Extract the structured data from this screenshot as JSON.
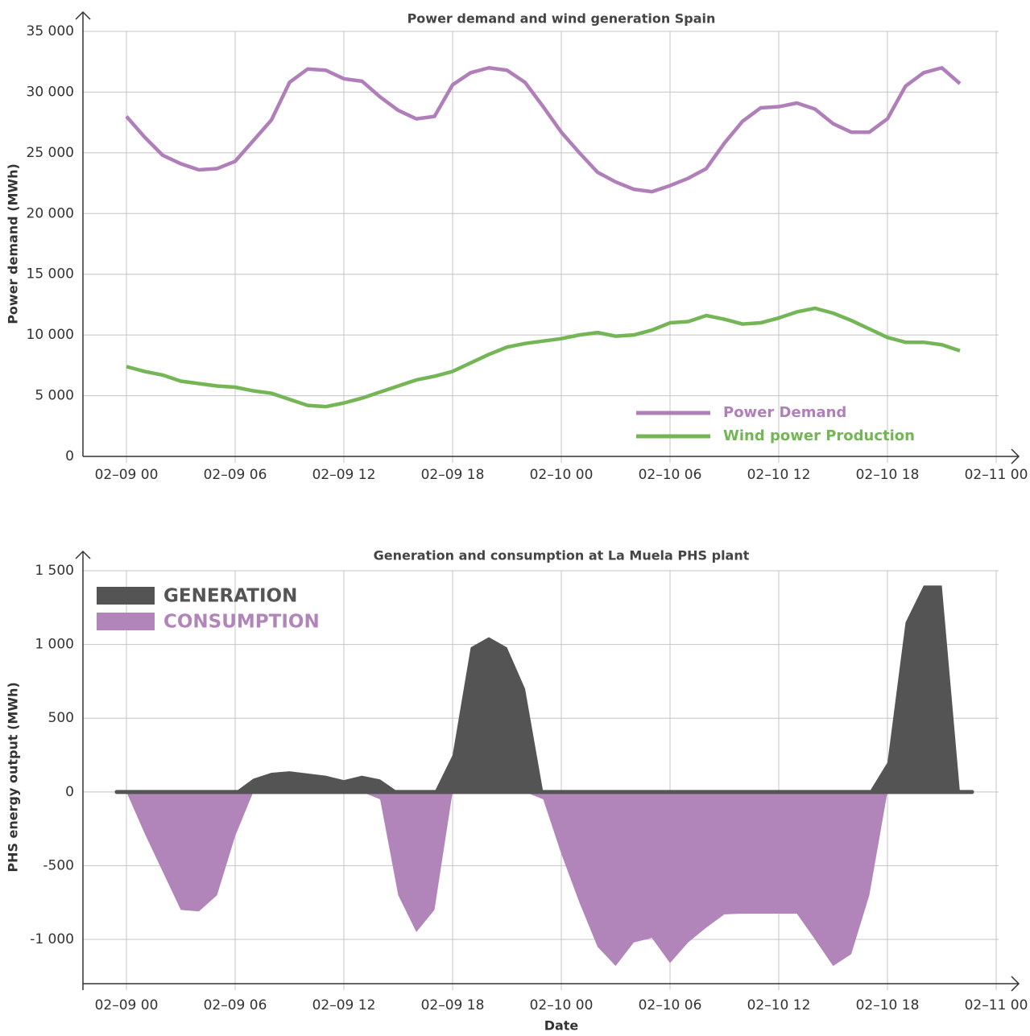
{
  "chart_data": [
    {
      "type": "line",
      "title": "Power demand and wind generation Spain",
      "ylabel": "Power demand (MWh)",
      "x": [
        "02–09 00",
        "02–09 01",
        "02–09 02",
        "02–09 03",
        "02–09 04",
        "02–09 05",
        "02–09 06",
        "02–09 07",
        "02–09 08",
        "02–09 09",
        "02–09 10",
        "02–09 11",
        "02–09 12",
        "02–09 13",
        "02–09 14",
        "02–09 15",
        "02–09 16",
        "02–09 17",
        "02–09 18",
        "02–09 19",
        "02–09 20",
        "02–09 21",
        "02–09 22",
        "02–09 23",
        "02–10 00",
        "02–10 01",
        "02–10 02",
        "02–10 03",
        "02–10 04",
        "02–10 05",
        "02–10 06",
        "02–10 07",
        "02–10 08",
        "02–10 09",
        "02–10 10",
        "02–10 11",
        "02–10 12",
        "02–10 13",
        "02–10 14",
        "02–10 15",
        "02–10 16",
        "02–10 17",
        "02–10 18",
        "02–10 19",
        "02–10 20",
        "02–10 21",
        "02–10 22"
      ],
      "series": [
        {
          "name": "Power Demand",
          "color": "#b07fba",
          "values": [
            28000,
            26300,
            24800,
            24100,
            23600,
            23700,
            24300,
            26000,
            27700,
            30800,
            31900,
            31800,
            31100,
            30900,
            29600,
            28500,
            27800,
            28000,
            30600,
            31600,
            32000,
            31800,
            30800,
            28800,
            26700,
            25000,
            23400,
            22600,
            22000,
            21800,
            22300,
            22900,
            23700,
            25800,
            27600,
            28700,
            28800,
            29100,
            28600,
            27400,
            26700,
            26700,
            27800,
            30500,
            31600,
            32000,
            30700
          ]
        },
        {
          "name": "Wind power Production",
          "color": "#74b556",
          "values": [
            7400,
            7000,
            6700,
            6200,
            6000,
            5800,
            5700,
            5400,
            5200,
            4700,
            4200,
            4100,
            4400,
            4800,
            5300,
            5800,
            6300,
            6600,
            7000,
            7700,
            8400,
            9000,
            9300,
            9500,
            9700,
            10000,
            10200,
            9900,
            10000,
            10400,
            11000,
            11100,
            11600,
            11300,
            10900,
            11000,
            11400,
            11900,
            12200,
            11800,
            11200,
            10500,
            9800,
            9400,
            9400,
            9200,
            8700
          ]
        }
      ],
      "xlim": [
        "02–08 22",
        "02–11 00"
      ],
      "xticks": [
        "02–09 00",
        "02–09 06",
        "02–09 12",
        "02–09 18",
        "02–10 00",
        "02–10 06",
        "02–10 12",
        "02–10 18",
        "02–11 00"
      ],
      "ylim": [
        0,
        35000
      ],
      "yticks": [
        0,
        {
          "value": 5000,
          "label": "5 000"
        },
        {
          "value": 10000,
          "label": "10 000"
        },
        {
          "value": 15000,
          "label": "15 000"
        },
        {
          "value": 20000,
          "label": "20 000"
        },
        {
          "value": 25000,
          "label": "25 000"
        },
        {
          "value": 30000,
          "label": "30 000"
        },
        {
          "value": 35000,
          "label": "35 000"
        }
      ],
      "grid": true,
      "legend": "lower right"
    },
    {
      "type": "area",
      "title": "Generation and consumption at La Muela PHS plant",
      "ylabel": "PHS energy output (MWh)",
      "xlabel": "Date",
      "x": [
        "02–09 00",
        "02–09 01",
        "02–09 02",
        "02–09 03",
        "02–09 04",
        "02–09 05",
        "02–09 06",
        "02–09 07",
        "02–09 08",
        "02–09 09",
        "02–09 10",
        "02–09 11",
        "02–09 12",
        "02–09 13",
        "02–09 14",
        "02–09 15",
        "02–09 16",
        "02–09 17",
        "02–09 18",
        "02–09 19",
        "02–09 20",
        "02–09 21",
        "02–09 22",
        "02–09 23",
        "02–10 00",
        "02–10 01",
        "02–10 02",
        "02–10 03",
        "02–10 04",
        "02–10 05",
        "02–10 06",
        "02–10 07",
        "02–10 08",
        "02–10 09",
        "02–10 10",
        "02–10 11",
        "02–10 12",
        "02–10 13",
        "02–10 14",
        "02–10 15",
        "02–10 16",
        "02–10 17",
        "02–10 18",
        "02–10 19",
        "02–10 20",
        "02–10 21",
        "02–10 22"
      ],
      "series": [
        {
          "name": "GENERATION",
          "color": "#545454",
          "values": [
            0,
            0,
            0,
            0,
            0,
            0,
            0,
            90,
            130,
            140,
            125,
            110,
            80,
            110,
            85,
            0,
            0,
            0,
            250,
            980,
            1050,
            980,
            700,
            0,
            0,
            0,
            0,
            0,
            0,
            0,
            0,
            0,
            0,
            0,
            0,
            0,
            0,
            0,
            0,
            0,
            0,
            0,
            200,
            1150,
            1400,
            1400,
            0
          ]
        },
        {
          "name": "CONSUMPTION",
          "color": "#b185ba",
          "values": [
            0,
            -280,
            -540,
            -800,
            -810,
            -700,
            -300,
            0,
            0,
            0,
            0,
            0,
            0,
            0,
            -50,
            -700,
            -950,
            -800,
            0,
            0,
            0,
            0,
            0,
            -50,
            -420,
            -750,
            -1050,
            -1180,
            -1020,
            -990,
            -1160,
            -1020,
            -920,
            -830,
            -825,
            -825,
            -825,
            -825,
            -1000,
            -1180,
            -1100,
            -700,
            0,
            0,
            0,
            0,
            0
          ]
        }
      ],
      "xlim": [
        "02–08 22",
        "02–11 00"
      ],
      "xticks": [
        "02–09 00",
        "02–09 06",
        "02–09 12",
        "02–09 18",
        "02–10 00",
        "02–10 06",
        "02–10 12",
        "02–10 18",
        "02–11 00"
      ],
      "ylim": [
        -1300,
        1500
      ],
      "yticks": [
        {
          "value": -1000,
          "label": "-1 000"
        },
        -500,
        0,
        500,
        {
          "value": 1000,
          "label": "1 000"
        },
        {
          "value": 1500,
          "label": "1 500"
        }
      ],
      "grid": true,
      "legend": "upper left"
    }
  ]
}
